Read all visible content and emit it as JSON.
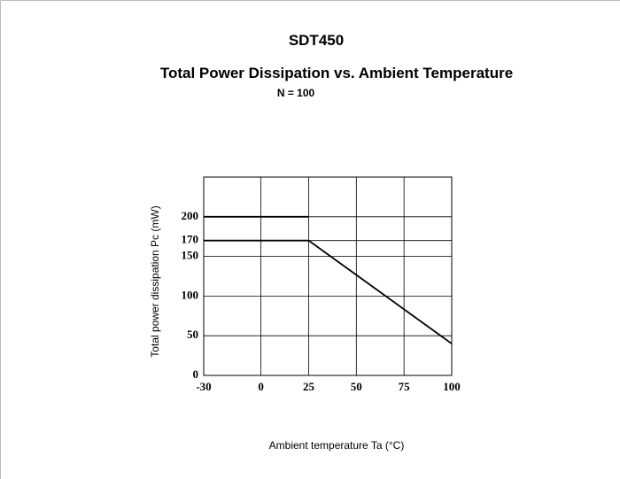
{
  "chart_data": {
    "type": "line",
    "title": "SDT450",
    "subtitle": "Total Power Dissipation vs. Ambient Temperature",
    "annotation": "N = 100",
    "xlabel": "Ambient temperature Ta (°C)",
    "ylabel": "Total power dissipation Pc (mW)",
    "series": [
      {
        "color": "#000000",
        "x": [
          -30,
          25
        ],
        "values": [
          200,
          200
        ]
      },
      {
        "color": "#000000",
        "x": [
          -30,
          25,
          100
        ],
        "values": [
          170,
          170,
          40
        ]
      }
    ],
    "xlim": [
      -30,
      100
    ],
    "xticks": [
      -30,
      0,
      25,
      50,
      75,
      100
    ],
    "ylim": [
      0,
      250
    ],
    "yticks": [
      0,
      50,
      100,
      150,
      170,
      200
    ],
    "grid": true
  }
}
